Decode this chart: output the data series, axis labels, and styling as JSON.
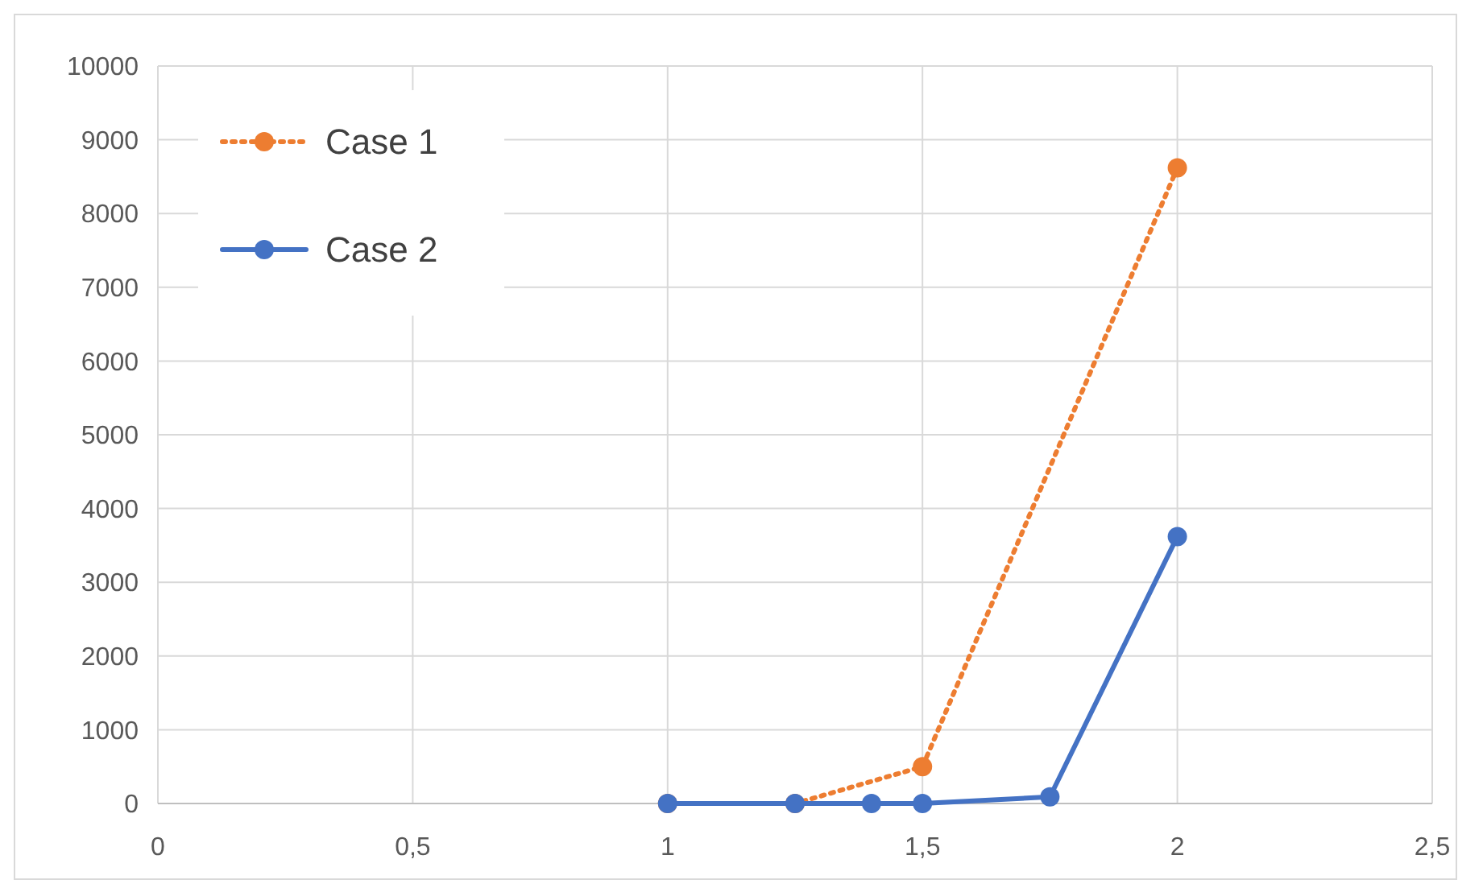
{
  "chart_data": {
    "type": "line",
    "xlim": [
      0,
      2.5
    ],
    "xticks": [
      0,
      {
        "value": 0.5,
        "label": "0,5"
      },
      1,
      {
        "value": 1.5,
        "label": "1,5"
      },
      2,
      {
        "value": 2.5,
        "label": "2,5"
      }
    ],
    "ylim": [
      0,
      10000
    ],
    "yticks": [
      0,
      1000,
      2000,
      3000,
      4000,
      5000,
      6000,
      7000,
      8000,
      9000,
      10000
    ],
    "grid": true,
    "legend": "top left",
    "marker": "circle",
    "series": [
      {
        "name": "Case 1",
        "color": "#ed7d31",
        "line_style": "dotted",
        "x": [
          1,
          1.25,
          1.5,
          2
        ],
        "values": [
          0,
          0,
          500,
          8620
        ]
      },
      {
        "name": "Case 2",
        "color": "#4472c4",
        "line_style": "solid",
        "x": [
          1,
          1.25,
          1.4,
          1.5,
          1.75,
          2
        ],
        "values": [
          0,
          0,
          0,
          0,
          90,
          3620
        ]
      }
    ]
  }
}
